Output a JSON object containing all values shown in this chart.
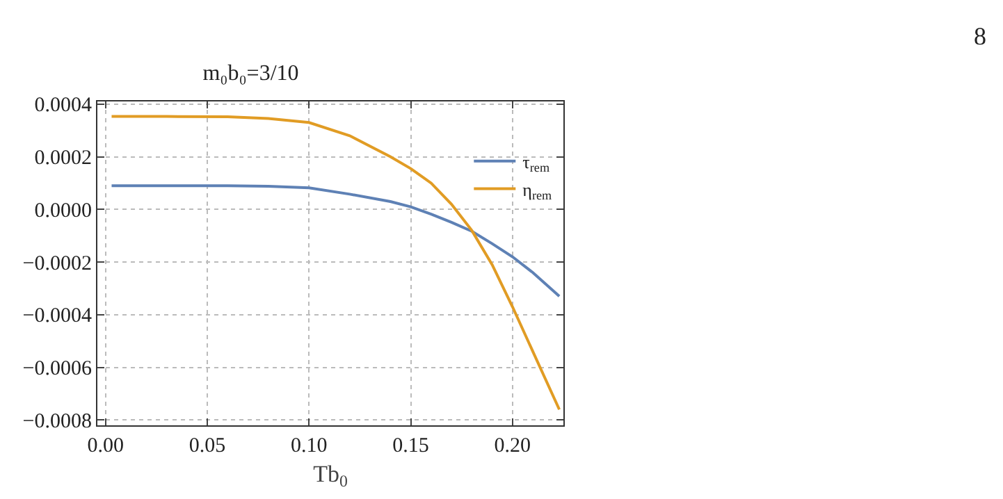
{
  "chart_data": {
    "type": "line",
    "title": "m₀b₀=3/10",
    "xlabel": "Tb$_{0}$",
    "annotations": [
      "8"
    ],
    "series": [
      {
        "name": "τ$_{rem}$",
        "color": "#5e81b5",
        "x": [
          0.003,
          0.03,
          0.06,
          0.08,
          0.1,
          0.12,
          0.14,
          0.15,
          0.16,
          0.17,
          0.18,
          0.19,
          0.2,
          0.21,
          0.223
        ],
        "values": [
          9e-05,
          9e-05,
          9e-05,
          8.8e-05,
          8.2e-05,
          5.8e-05,
          3e-05,
          1e-05,
          -1.8e-05,
          -4.9e-05,
          -8.3e-05,
          -0.00013,
          -0.00018,
          -0.00024,
          -0.00033
        ]
      },
      {
        "name": "η$_{rem}$",
        "color": "#e19c24",
        "x": [
          0.003,
          0.03,
          0.06,
          0.08,
          0.1,
          0.12,
          0.14,
          0.15,
          0.16,
          0.17,
          0.18,
          0.19,
          0.2,
          0.21,
          0.223
        ],
        "values": [
          0.000353,
          0.000353,
          0.000352,
          0.000345,
          0.00033,
          0.00028,
          0.0002,
          0.000155,
          0.0001,
          2e-05,
          -8e-05,
          -0.00021,
          -0.00037,
          -0.00054,
          -0.00076
        ]
      }
    ],
    "xlim": [
      -0.004,
      0.225
    ],
    "xticks": [
      {
        "value": 0,
        "label": "0.00"
      },
      0.05,
      {
        "value": 0.1,
        "label": "0.10"
      },
      0.15,
      {
        "value": 0.2,
        "label": "0.20"
      }
    ],
    "ylim": [
      -0.00082,
      0.00041
    ],
    "yticks": [
      {
        "value": -0.0008,
        "label": "−0.0008"
      },
      {
        "value": -0.0006,
        "label": "−0.0006"
      },
      {
        "value": -0.0004,
        "label": "−0.0004"
      },
      {
        "value": -0.0002,
        "label": "−0.0002"
      },
      {
        "value": 0,
        "label": "0.0000"
      },
      0.0002,
      0.0004
    ],
    "grid": true,
    "legend": "top right",
    "marker": "none",
    "line_style": "solid"
  }
}
